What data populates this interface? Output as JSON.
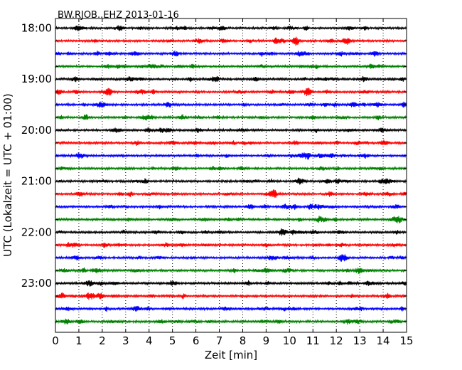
{
  "chart_data": {
    "type": "line",
    "title": "BW.RJOB..EHZ 2013-01-16",
    "xlabel": "Zeit  [min]",
    "ylabel": "UTC (Lokalzeit = UTC + 01:00)",
    "xlim": [
      0,
      15
    ],
    "x_ticks": [
      "0",
      "1",
      "2",
      "3",
      "4",
      "5",
      "6",
      "7",
      "8",
      "9",
      "10",
      "11",
      "12",
      "13",
      "14",
      "15"
    ],
    "y_tick_labels": [
      "18:00",
      "19:00",
      "20:00",
      "21:00",
      "22:00",
      "23:00"
    ],
    "y_tick_trace_index": [
      0,
      4,
      8,
      12,
      16,
      20
    ],
    "grid": "vertical dotted lines at each minute",
    "minutes_per_line": 15,
    "start_time": "18:00",
    "end_time": "24:00",
    "trace_count": 24,
    "trace_colors": [
      "#000000",
      "#ff0000",
      "#0000ff",
      "#008000"
    ],
    "series": [
      {
        "start": "18:00"
      },
      {
        "start": "18:15"
      },
      {
        "start": "18:30"
      },
      {
        "start": "18:45"
      },
      {
        "start": "19:00"
      },
      {
        "start": "19:15"
      },
      {
        "start": "19:30"
      },
      {
        "start": "19:45"
      },
      {
        "start": "20:00"
      },
      {
        "start": "20:15"
      },
      {
        "start": "20:30"
      },
      {
        "start": "20:45"
      },
      {
        "start": "21:00"
      },
      {
        "start": "21:15"
      },
      {
        "start": "21:30"
      },
      {
        "start": "21:45"
      },
      {
        "start": "22:00"
      },
      {
        "start": "22:15"
      },
      {
        "start": "22:30"
      },
      {
        "start": "22:45"
      },
      {
        "start": "23:00"
      },
      {
        "start": "23:15"
      },
      {
        "start": "23:30"
      },
      {
        "start": "23:45"
      }
    ]
  }
}
